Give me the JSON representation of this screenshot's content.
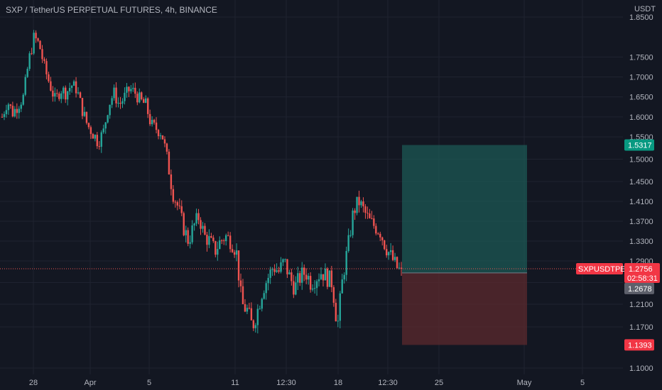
{
  "header": {
    "title": "SXP / TetherUS PERPETUAL FUTURES, 4h, BINANCE"
  },
  "colors": {
    "background": "#131722",
    "grid": "#1f2330",
    "text": "#b2b5be",
    "up": "#26a69a",
    "down": "#ef5350",
    "profit_zone": "#1d5c57",
    "loss_zone": "#5c2a2d",
    "target_tag": "#089981",
    "stop_tag": "#f23645",
    "entry_tag": "#5d606b",
    "symbol_tag": "#f23645"
  },
  "chart_data": {
    "type": "candlestick",
    "yunit": "USDT",
    "ylim": [
      1.08,
      1.87
    ],
    "y_ticks": [
      "1.8500",
      "1.7500",
      "1.7000",
      "1.6500",
      "1.6000",
      "1.5500",
      "1.5000",
      "1.4500",
      "1.4100",
      "1.3700",
      "1.3300",
      "1.2900",
      "1.2500",
      "1.2100",
      "1.1700",
      "1.1000"
    ],
    "x_ticks": [
      "28",
      "Apr",
      "5",
      "11",
      "12:30",
      "18",
      "12:30",
      "25",
      "May",
      "5"
    ],
    "price_path": [
      1.6,
      1.64,
      1.61,
      1.63,
      1.65,
      1.74,
      1.8,
      1.78,
      1.72,
      1.68,
      1.64,
      1.67,
      1.66,
      1.68,
      1.67,
      1.62,
      1.58,
      1.56,
      1.54,
      1.56,
      1.63,
      1.66,
      1.63,
      1.65,
      1.67,
      1.66,
      1.64,
      1.63,
      1.58,
      1.57,
      1.56,
      1.5,
      1.43,
      1.4,
      1.36,
      1.33,
      1.36,
      1.38,
      1.34,
      1.33,
      1.31,
      1.33,
      1.34,
      1.33,
      1.31,
      1.21,
      1.2,
      1.17,
      1.2,
      1.24,
      1.26,
      1.28,
      1.27,
      1.29,
      1.26,
      1.24,
      1.26,
      1.27,
      1.25,
      1.26,
      1.27,
      1.26,
      1.25,
      1.17,
      1.26,
      1.32,
      1.39,
      1.41,
      1.39,
      1.37,
      1.36,
      1.35,
      1.32,
      1.3,
      1.28,
      1.2678
    ],
    "candle_count": 190,
    "position": {
      "target": "1.5317",
      "entry": "1.2678",
      "stop": "1.1393",
      "current": "1.2756",
      "symbol": "SXPUSDTPERP",
      "countdown": "02:58:31"
    }
  }
}
